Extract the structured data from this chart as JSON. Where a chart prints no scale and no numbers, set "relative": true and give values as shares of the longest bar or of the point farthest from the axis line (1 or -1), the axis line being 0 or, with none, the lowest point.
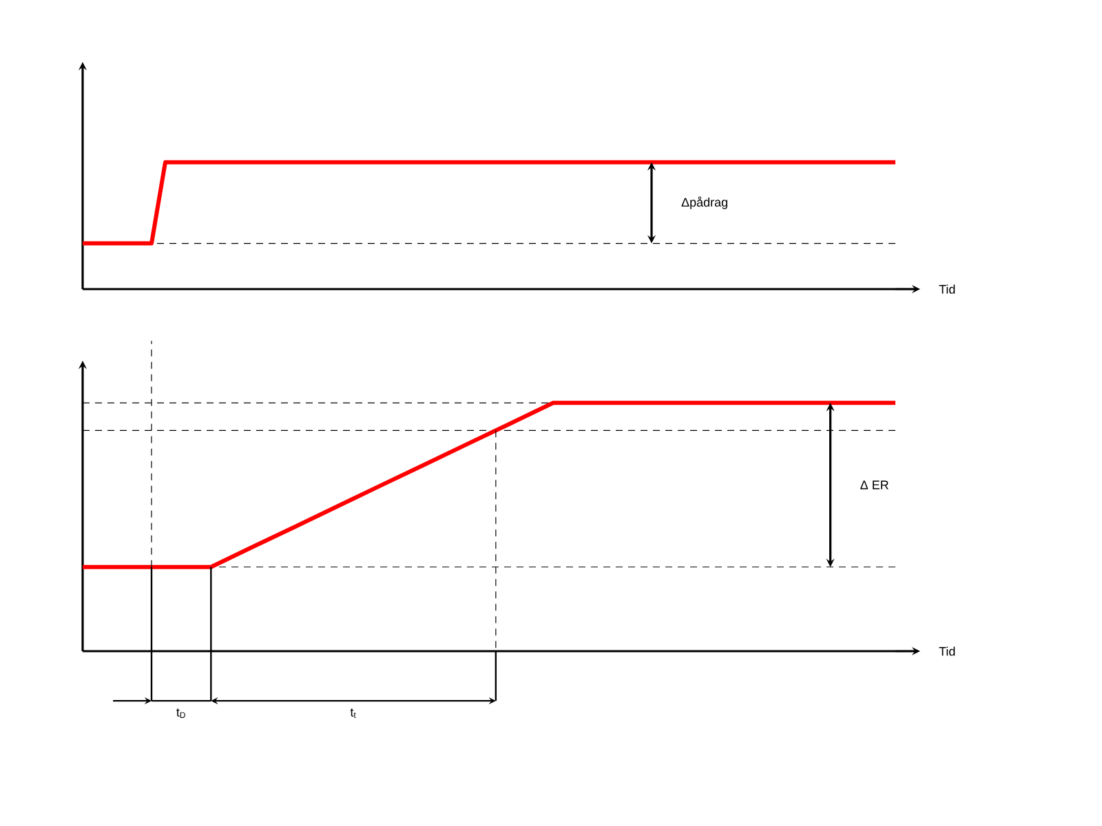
{
  "chart_data": [
    {
      "type": "line",
      "relative": true,
      "xlabel": "Tid",
      "categories": [
        null,
        null,
        null,
        null,
        null,
        null,
        null,
        null,
        null,
        null,
        null,
        null,
        null,
        null,
        null,
        null,
        null,
        null,
        null,
        null,
        null,
        null,
        null,
        null,
        null,
        null,
        null,
        null,
        null,
        null,
        null,
        null,
        null,
        null,
        null,
        null,
        null,
        null,
        null,
        null,
        null,
        null,
        null,
        null,
        null,
        null,
        null,
        null,
        null,
        null,
        null,
        null,
        null,
        null,
        null,
        null,
        null,
        null,
        null,
        null
      ],
      "values": [
        0.36,
        0.36,
        0.36,
        0.36,
        0.36,
        0.36,
        1,
        1,
        1,
        1,
        1,
        1,
        1,
        1,
        1,
        1,
        1,
        1,
        1,
        1,
        1,
        1,
        1,
        1,
        1,
        1,
        1,
        1,
        1,
        1,
        1,
        1,
        1,
        1,
        1,
        1,
        1,
        1,
        1,
        1,
        1,
        1,
        1,
        1,
        1,
        1,
        1,
        1,
        1,
        1,
        1,
        1,
        1,
        1,
        1,
        1,
        1,
        1,
        1,
        1
      ],
      "color": "#ff0000",
      "ref_lines": [
        {
          "axis": "y",
          "value": 0.36,
          "line_style": "dashed"
        }
      ],
      "annotations": [
        "Δpådrag"
      ]
    },
    {
      "type": "line",
      "relative": true,
      "xlabel": "Tid",
      "categories": [
        null,
        null,
        null,
        null,
        null,
        null,
        null,
        null,
        null,
        null,
        null,
        null,
        null,
        null,
        null,
        null,
        null,
        null,
        null,
        null
      ],
      "values": [
        0.339,
        0.339,
        0.339,
        0.339,
        0.422,
        0.504,
        0.587,
        0.67,
        0.752,
        0.835,
        0.917,
        1,
        1,
        1,
        1,
        1,
        1,
        1,
        1,
        1
      ],
      "color": "#ff0000",
      "ref_lines": [
        {
          "axis": "y",
          "value": 1,
          "line_style": "dashed"
        },
        {
          "axis": "y",
          "value": 0.889,
          "line_style": "dashed"
        },
        {
          "axis": "y",
          "value": 0.339,
          "line_style": "dashed"
        }
      ],
      "annotations": [
        "Δ ER",
        "t$_{D}$",
        "t$_{t}$"
      ]
    }
  ]
}
